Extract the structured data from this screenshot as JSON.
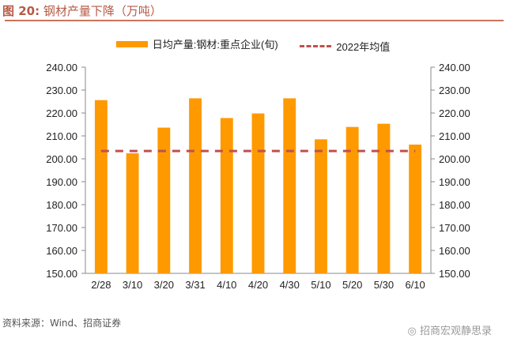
{
  "title_prefix": "图 20:",
  "title_text": "钢材产量下降（万吨）",
  "source": "资料来源：Wind、招商证券",
  "watermark": "招商宏观静思录",
  "chart_data": {
    "type": "bar",
    "categories": [
      "2/28",
      "3/10",
      "3/20",
      "3/31",
      "4/10",
      "4/20",
      "4/30",
      "5/10",
      "5/20",
      "5/30",
      "6/10"
    ],
    "series": [
      {
        "name": "日均产量:钢材:重点企业(旬)",
        "type": "bar",
        "color": "#ff9900",
        "values": [
          225.6,
          202.4,
          213.6,
          226.4,
          217.8,
          219.8,
          226.4,
          208.5,
          213.9,
          215.3,
          206.2
        ]
      },
      {
        "name": "2022年均值",
        "type": "line-dashed",
        "color": "#c0504d",
        "values": [
          203.4,
          203.4,
          203.4,
          203.4,
          203.4,
          203.4,
          203.4,
          203.4,
          203.4,
          203.4,
          203.4
        ]
      }
    ],
    "ylim": [
      150,
      240
    ],
    "yticks": [
      "150.00",
      "160.00",
      "170.00",
      "180.00",
      "190.00",
      "200.00",
      "210.00",
      "220.00",
      "230.00",
      "240.00"
    ],
    "y2ticks": [
      "150.00",
      "160.00",
      "170.00",
      "180.00",
      "190.00",
      "200.00",
      "210.00",
      "220.00",
      "230.00",
      "240.00"
    ],
    "grid": false,
    "legend": "top"
  }
}
